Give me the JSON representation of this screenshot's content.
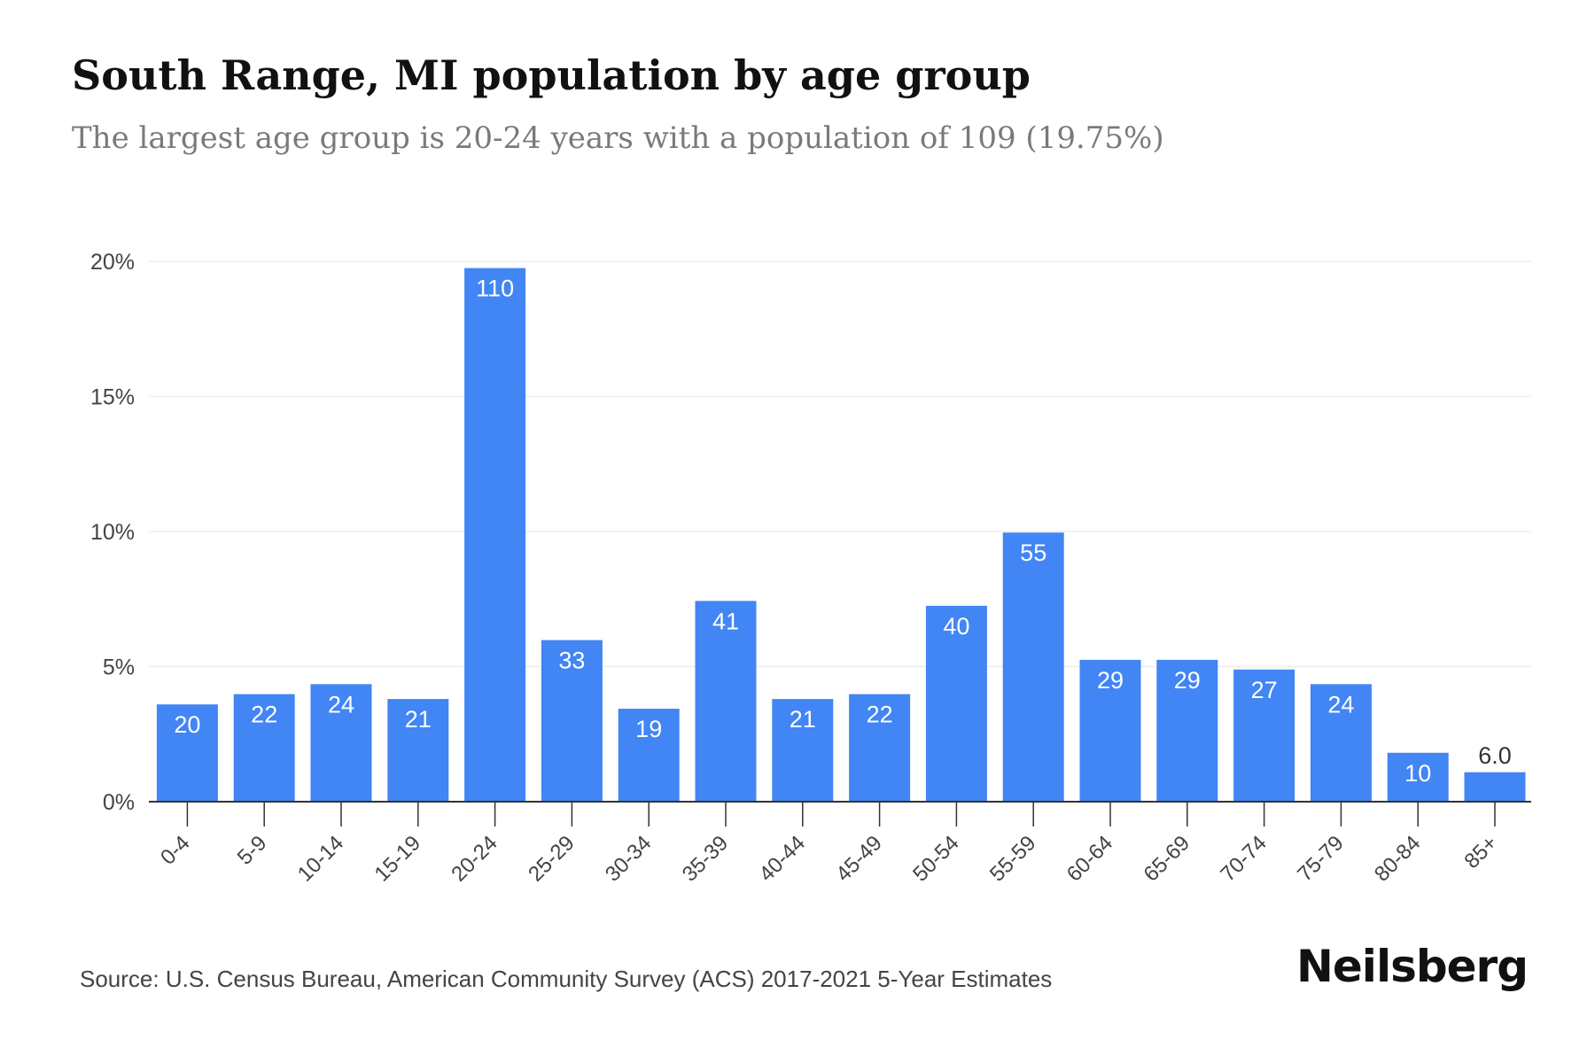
{
  "header": {
    "title": "South Range, MI population by age group",
    "subtitle": "The largest age group is 20-24 years with a population of 109 (19.75%)"
  },
  "footer": {
    "source": "Source: U.S. Census Bureau, American Community Survey (ACS) 2017-2021 5-Year Estimates",
    "brand": "Neilsberg"
  },
  "colors": {
    "bar": "#4285f4",
    "label_inside": "#ffffff",
    "label_outside": "#333333",
    "grid": "#eeeeee",
    "axis": "#333333",
    "tick_text": "#444444"
  },
  "chart_data": {
    "type": "bar",
    "categories": [
      "0-4",
      "5-9",
      "10-14",
      "15-19",
      "20-24",
      "25-29",
      "30-34",
      "35-39",
      "40-44",
      "45-49",
      "50-54",
      "55-59",
      "60-64",
      "65-69",
      "70-74",
      "75-79",
      "80-84",
      "85+"
    ],
    "values": [
      3.6,
      3.98,
      4.35,
      3.8,
      19.75,
      5.98,
      3.44,
      7.43,
      3.8,
      3.98,
      7.25,
      9.96,
      5.25,
      5.25,
      4.89,
      4.35,
      1.81,
      1.09
    ],
    "data_labels": [
      "20",
      "22",
      "24",
      "21",
      "110",
      "33",
      "19",
      "41",
      "21",
      "22",
      "40",
      "55",
      "29",
      "29",
      "27",
      "24",
      "10",
      "6.0"
    ],
    "y_ticks": [
      0,
      5,
      10,
      15,
      20
    ],
    "y_tick_labels": [
      "0%",
      "5%",
      "10%",
      "15%",
      "20%"
    ],
    "ylim": [
      0,
      20
    ],
    "grid": true,
    "legend": "none"
  }
}
